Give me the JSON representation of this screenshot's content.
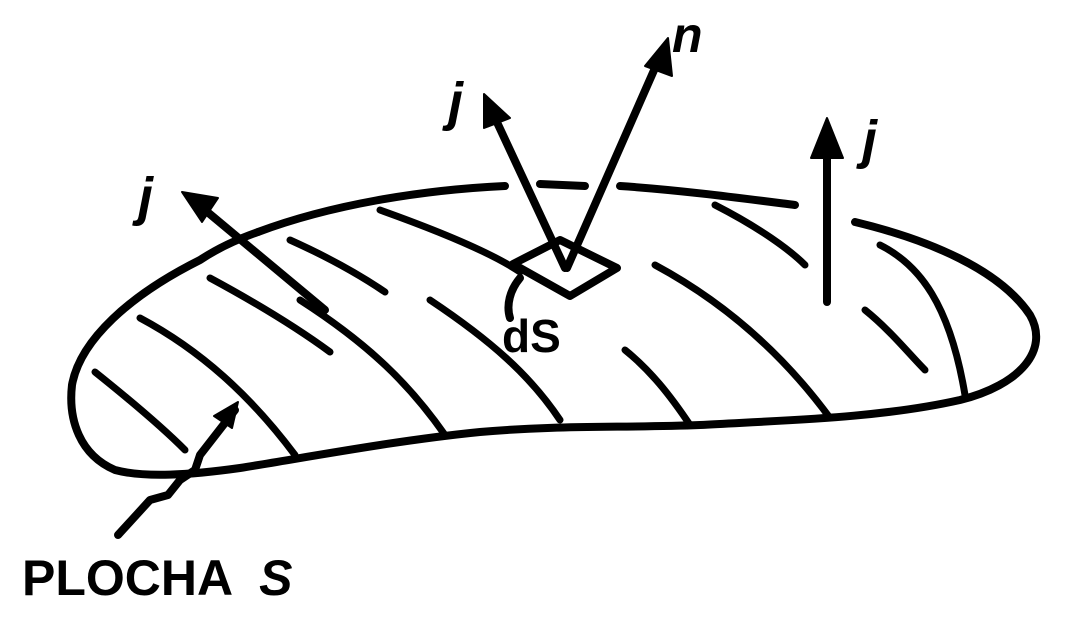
{
  "labels": {
    "vector_n": "n",
    "vector_j_left": "j",
    "vector_j_center": "j",
    "vector_j_right": "j",
    "area_element": "dS",
    "surface_word": "PLOCHA",
    "surface_symbol": "S"
  },
  "colors": {
    "ink": "#000000",
    "background": "#ffffff"
  }
}
